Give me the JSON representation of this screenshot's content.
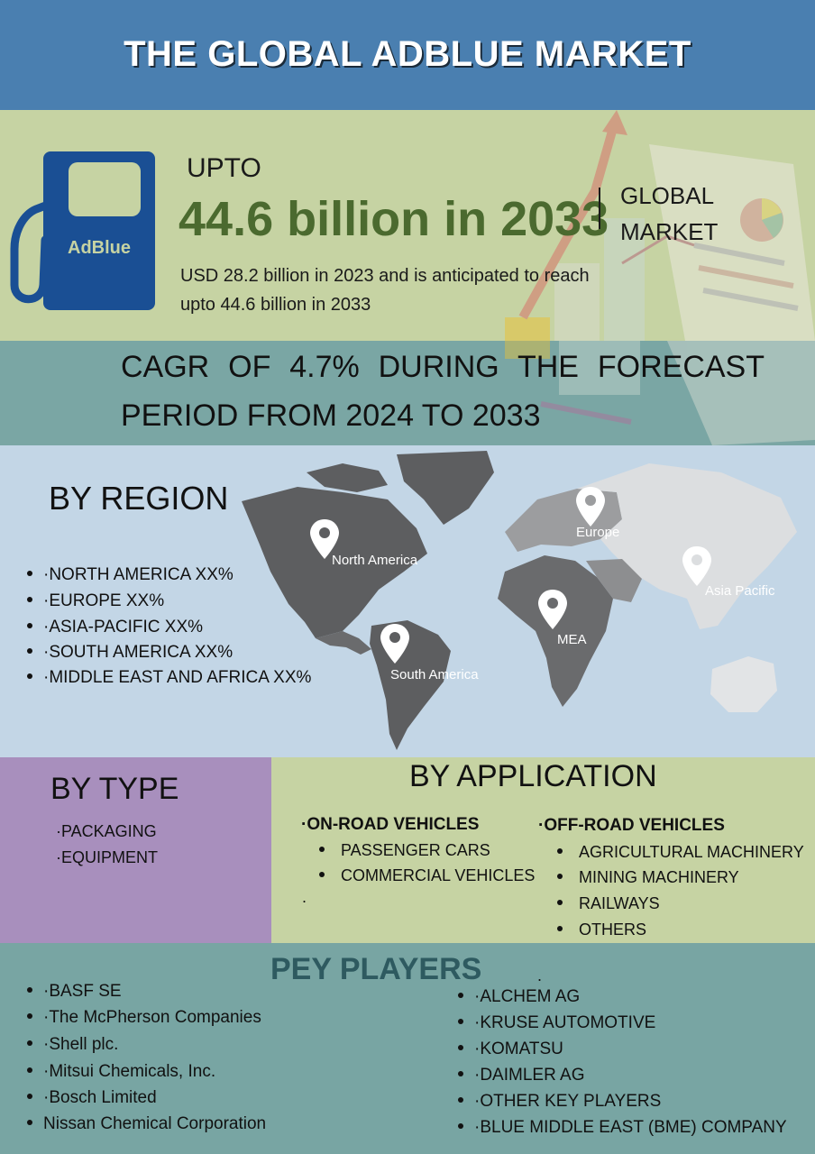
{
  "header": {
    "title": "THE GLOBAL ADBLUE MARKET"
  },
  "hero": {
    "pump_label": "AdBlue",
    "upto": "UPTO",
    "headline": "44.6 billion in 2033",
    "global_line1": "GLOBAL",
    "global_line2": "MARKET",
    "description": "USD 28.2 billion in 2023 and is anticipated to reach upto 44.6 billion in 2033"
  },
  "cagr": {
    "line1": "CAGR OF 4.7% DURING THE FORECAST",
    "line2": "PERIOD FROM 2024 TO 2033"
  },
  "region": {
    "title": "BY REGION",
    "items": [
      "·NORTH AMERICA XX%",
      "·EUROPE  XX%",
      "·ASIA-PACIFIC  XX%",
      "·SOUTH AMERICA  XX%",
      "·MIDDLE EAST AND AFRICA XX%"
    ],
    "pins": [
      "North America",
      "Europe",
      "Asia Pacific",
      "MEA",
      "South America"
    ]
  },
  "type": {
    "title": "BY TYPE",
    "items": [
      "·PACKAGING",
      "·EQUIPMENT"
    ]
  },
  "application": {
    "title": "BY APPLICATION",
    "on_road": {
      "header": "·ON-ROAD VEHICLES",
      "items": [
        "PASSENGER CARS",
        "COMMERCIAL VEHICLES"
      ],
      "trailing": "."
    },
    "off_road": {
      "header": "·OFF-ROAD VEHICLES",
      "items": [
        "AGRICULTURAL MACHINERY",
        "MINING MACHINERY",
        "RAILWAYS",
        "OTHERS"
      ]
    }
  },
  "players": {
    "title": "PEY PLAYERS",
    "dot": ".",
    "left": [
      "·BASF SE",
      "·The McPherson Companies",
      "·Shell plc.",
      "·Mitsui Chemicals, Inc.",
      "·Bosch Limited",
      "Nissan Chemical Corporation"
    ],
    "right": [
      "·ALCHEM AG",
      "·KRUSE AUTOMOTIVE",
      "·KOMATSU",
      "·DAIMLER AG",
      "·OTHER KEY PLAYERS",
      "·BLUE MIDDLE EAST (BME) COMPANY"
    ]
  },
  "colors": {
    "header_bg": "#4a7fb0",
    "headline_green": "#4b6a2f",
    "pump_blue": "#1a4f94",
    "type_purple": "#a88fbd",
    "players_teal": "#78a5a3",
    "map_grey": "#5d5e60"
  }
}
